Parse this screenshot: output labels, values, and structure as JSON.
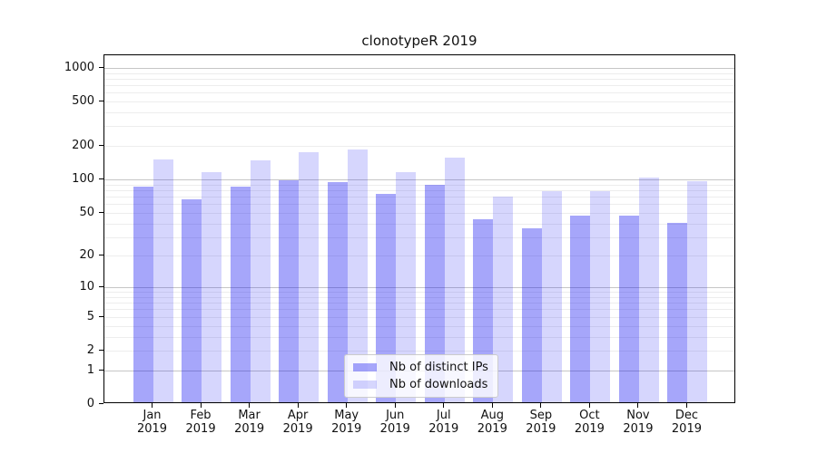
{
  "figure": {
    "title": "clonotypeR 2019",
    "background_color": "#ffffff"
  },
  "chart_data": {
    "type": "bar",
    "title": "clonotypeR 2019",
    "categories": [
      "Jan",
      "Feb",
      "Mar",
      "Apr",
      "May",
      "Jun",
      "Jul",
      "Aug",
      "Sep",
      "Oct",
      "Nov",
      "Dec"
    ],
    "category_year_suffix": "2019",
    "series": [
      {
        "name": "Nb of distinct IPs",
        "color": "rgba(0,0,240,0.35)",
        "values": [
          83,
          64,
          83,
          94,
          91,
          72,
          87,
          42,
          35,
          45,
          45,
          39
        ]
      },
      {
        "name": "Nb of downloads",
        "color": "rgba(0,0,240,0.16)",
        "values": [
          146,
          112,
          142,
          168,
          179,
          112,
          151,
          67,
          75,
          76,
          101,
          93
        ]
      }
    ],
    "yscale": "log1p",
    "ylim": [
      0,
      1296
    ],
    "ytick_labels": [
      0,
      1,
      2,
      5,
      10,
      20,
      50,
      100,
      200,
      500,
      1000
    ],
    "grid_major": [
      1,
      10,
      100,
      1000
    ],
    "grid_minor": [
      2,
      3,
      4,
      5,
      6,
      7,
      8,
      9,
      20,
      30,
      40,
      50,
      60,
      70,
      80,
      90,
      200,
      300,
      400,
      500,
      600,
      700,
      800,
      900
    ],
    "grid_major_color": "#c6c6c6",
    "grid_minor_color": "#ededed",
    "legend_position": "lower-center",
    "xlabel": "",
    "ylabel": ""
  }
}
